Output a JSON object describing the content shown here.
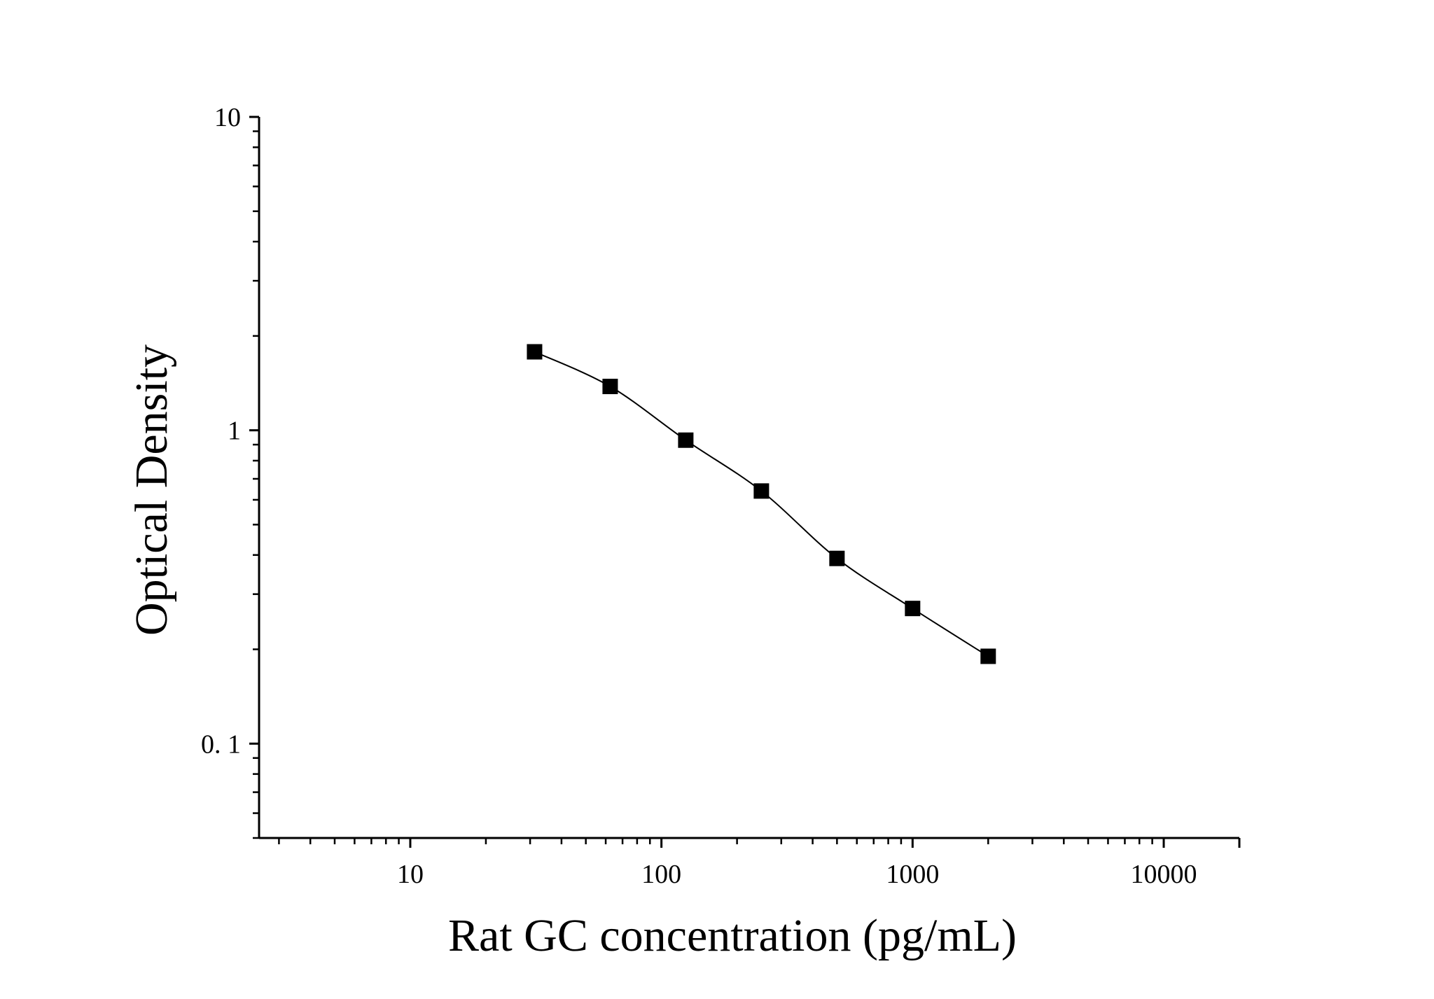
{
  "chart_data": {
    "type": "scatter",
    "title": "",
    "xlabel": "Rat GC concentration (pg/mL)",
    "ylabel": "Optical Density",
    "xscale": "log",
    "yscale": "log",
    "xlim": [
      2.5,
      20000
    ],
    "ylim": [
      0.05,
      10
    ],
    "x_ticks": [
      10,
      100,
      1000,
      10000
    ],
    "x_tick_labels": [
      "10",
      "100",
      "1000",
      "10000"
    ],
    "y_ticks": [
      0.1,
      1,
      10
    ],
    "y_tick_labels": [
      "0. 1",
      "1",
      "10"
    ],
    "grid": false,
    "legend": "none",
    "series": [
      {
        "marker": "square",
        "fit": "smooth-curve",
        "color": "#000000",
        "x": [
          31.25,
          62.5,
          125,
          250,
          500,
          1000,
          2000
        ],
        "y": [
          1.78,
          1.38,
          0.93,
          0.64,
          0.39,
          0.27,
          0.19
        ]
      }
    ]
  }
}
